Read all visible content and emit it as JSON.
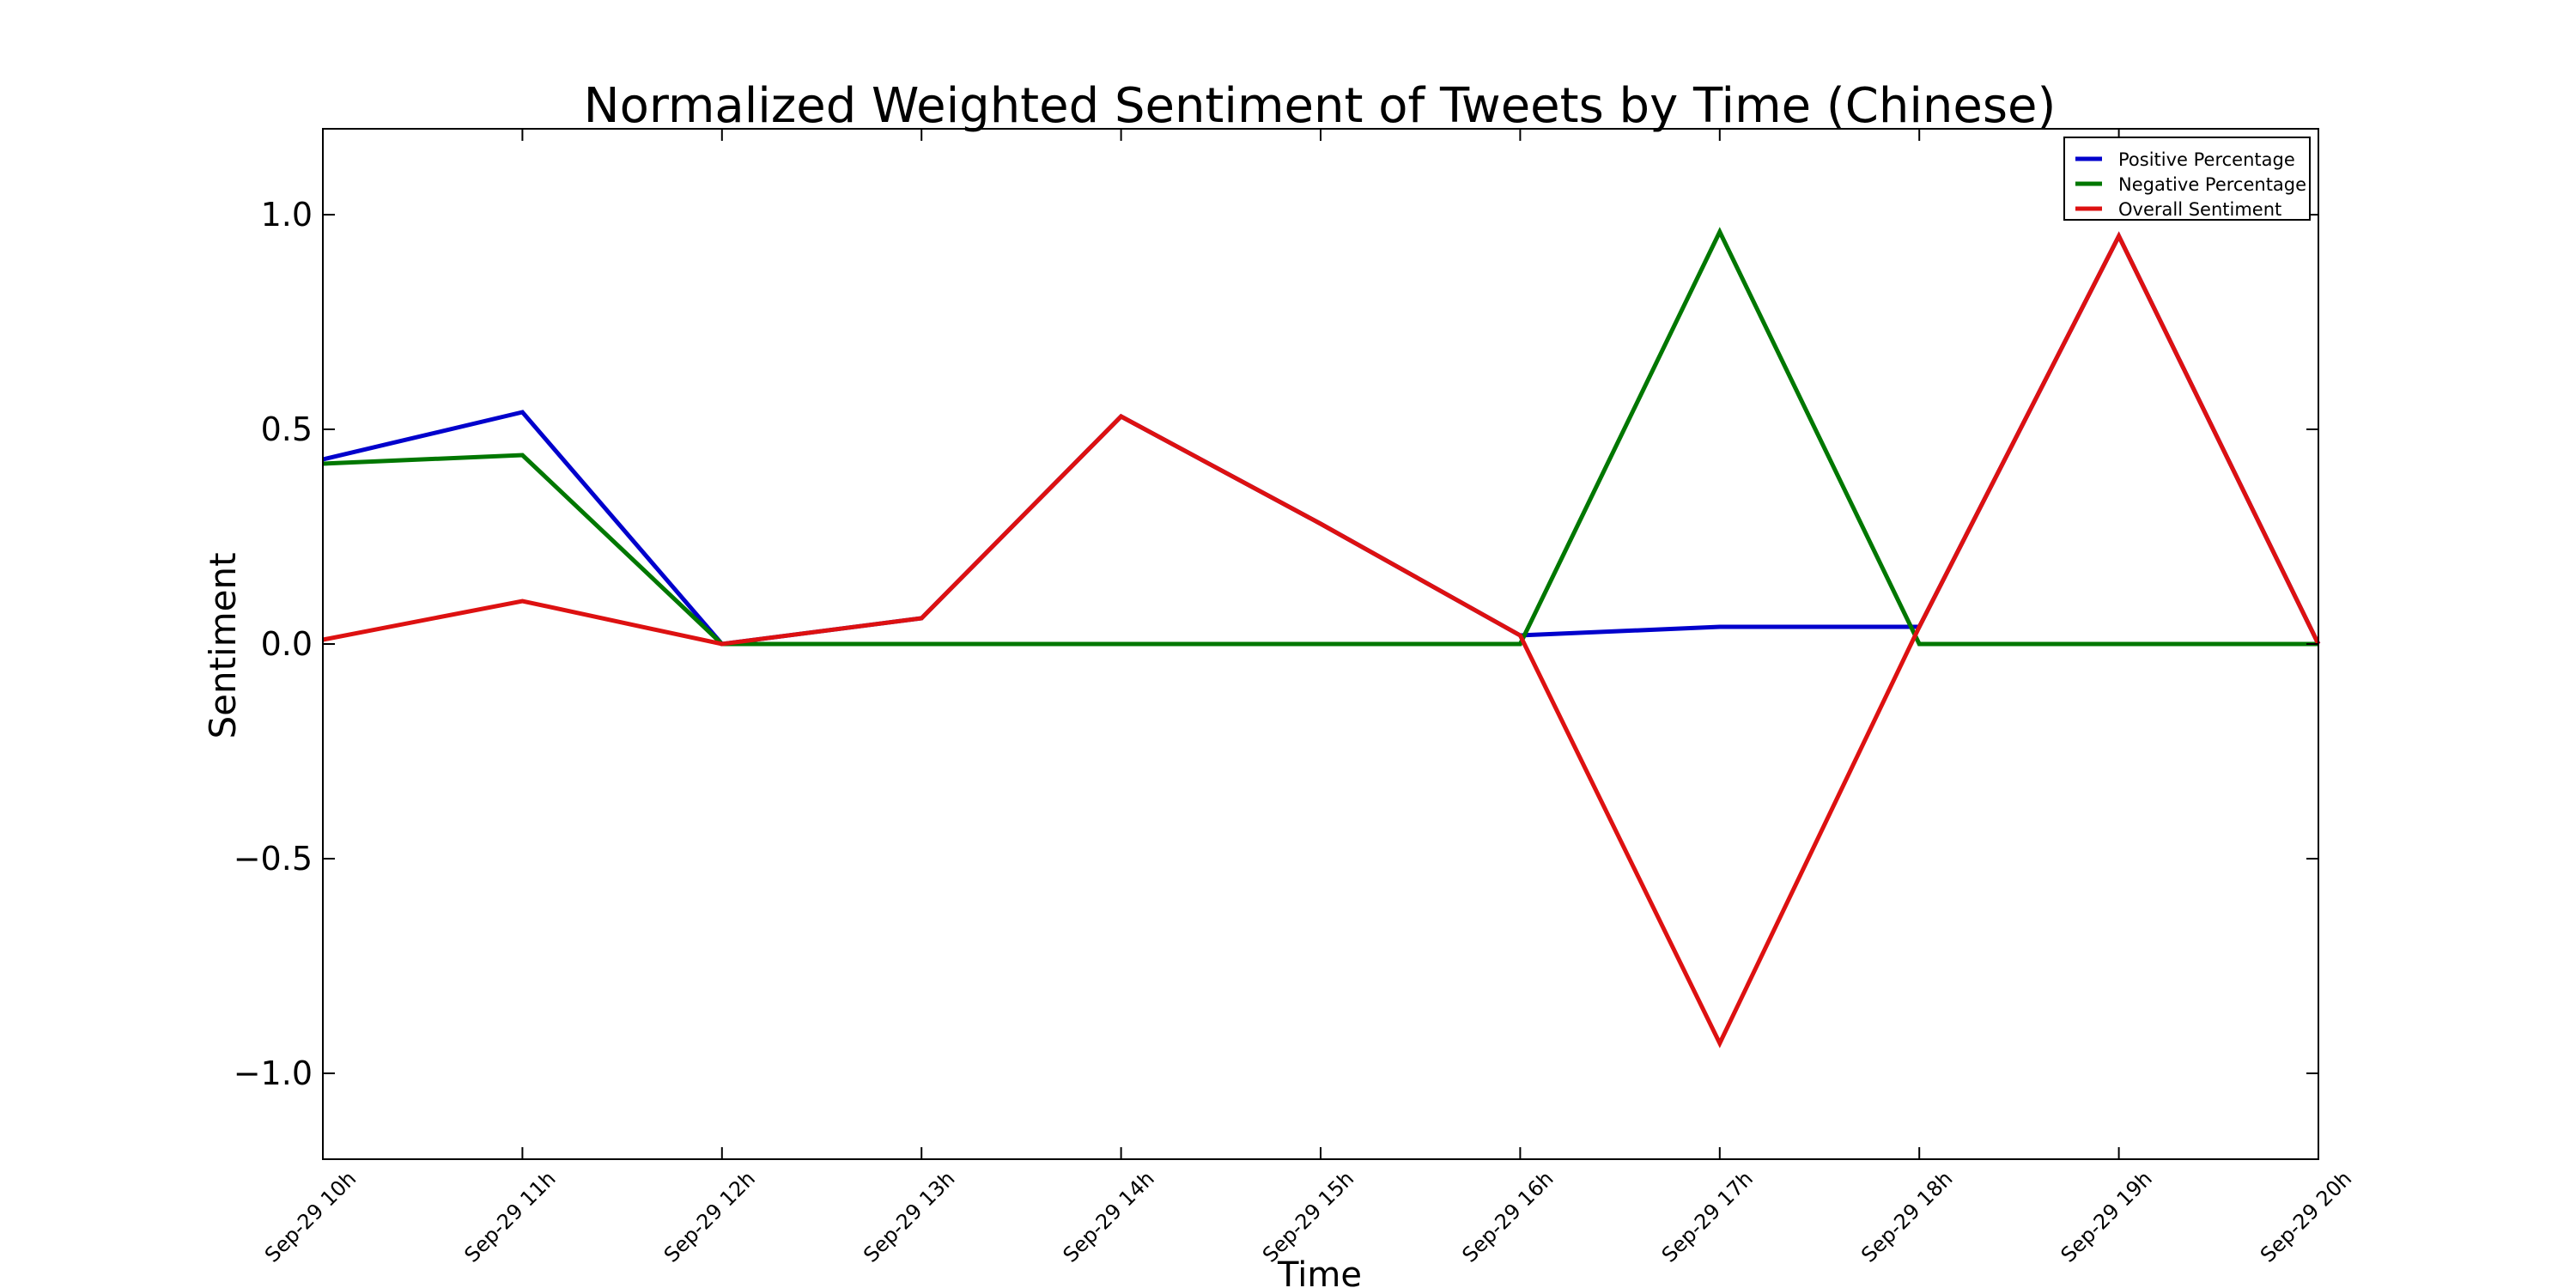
{
  "chart_data": {
    "type": "line",
    "title": "Normalized Weighted Sentiment of Tweets by Time (Chinese)",
    "xlabel": "Time",
    "ylabel": "Sentiment",
    "categories": [
      "Sep-29 10h",
      "Sep-29 11h",
      "Sep-29 12h",
      "Sep-29 13h",
      "Sep-29 14h",
      "Sep-29 15h",
      "Sep-29 16h",
      "Sep-29 17h",
      "Sep-29 18h",
      "Sep-29 19h",
      "Sep-29 20h"
    ],
    "ylim": [
      -1.2,
      1.2
    ],
    "yticks": [
      1.0,
      0.5,
      0.0,
      -0.5,
      -1.0
    ],
    "ytick_labels": [
      "1.0",
      "0.5",
      "0.0",
      "−0.5",
      "−1.0"
    ],
    "grid": false,
    "legend_position": "top-right",
    "series": [
      {
        "name": "Positive Percentage",
        "color": "#0000cc",
        "values": [
          0.43,
          0.54,
          0.0,
          0.06,
          0.53,
          0.28,
          0.02,
          0.04,
          0.04,
          0.95,
          0.0
        ]
      },
      {
        "name": "Negative Percentage",
        "color": "#007700",
        "values": [
          0.42,
          0.44,
          0.0,
          0.0,
          0.0,
          0.0,
          0.0,
          0.96,
          0.0,
          0.0,
          0.0
        ]
      },
      {
        "name": "Overall Sentiment",
        "color": "#dd1111",
        "values": [
          0.01,
          0.1,
          0.0,
          0.06,
          0.53,
          0.28,
          0.02,
          -0.93,
          0.04,
          0.95,
          0.0
        ]
      }
    ]
  }
}
